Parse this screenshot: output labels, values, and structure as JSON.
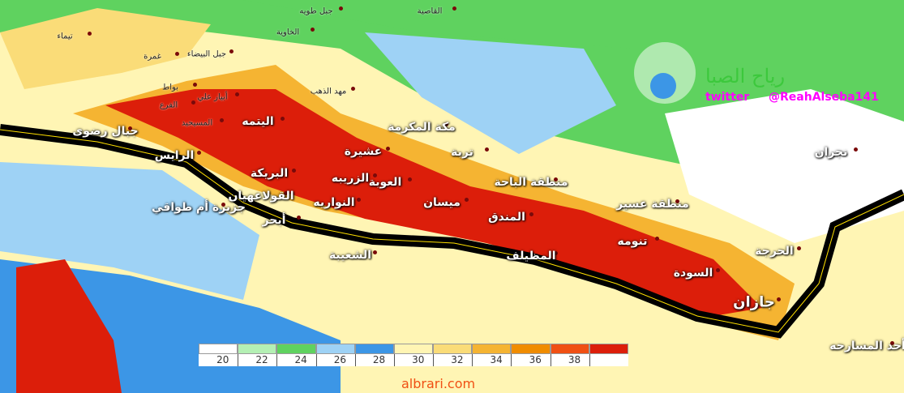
{
  "map": {
    "places": [
      "تيماء",
      "غمرة",
      "جبل البيضاء",
      "الخاوية",
      "جبل طويه",
      "القاصية",
      "بواط",
      "أبيار علي",
      "الفرع",
      "مهد الذهب",
      "المسيجيد",
      "اليتمه",
      "جبال رضوى",
      "مكة المكرمة",
      "عشيرة",
      "تربة",
      "الرايس",
      "البريكة",
      "الزريبه",
      "العوبة",
      "منطقة الباحة",
      "القولاعهيان",
      "النواريه",
      "ميسان",
      "منطقة عسير",
      "جزيرة أم طواقي",
      "أبحر",
      "المندق",
      "تنومه",
      "الحرجة",
      "الشعيبة",
      "المظيلف",
      "السودة",
      "جازان",
      "أحد المسارحه",
      "نجران"
    ],
    "logo": {
      "title": "رياح الصبا",
      "twitter": "twitter",
      "handle": "@ReahAlseba141"
    },
    "legend": {
      "ticks": [
        20,
        22,
        24,
        26,
        28,
        30,
        32,
        34,
        36,
        38
      ],
      "colors": [
        "#ffffff",
        "#b4f0b4",
        "#5fd25f",
        "#9ed2f5",
        "#3c96e6",
        "#fff5b4",
        "#fadc78",
        "#f5b432",
        "#f08c00",
        "#f05014",
        "#dc1e0a"
      ]
    },
    "watermark": "albrari.com"
  }
}
